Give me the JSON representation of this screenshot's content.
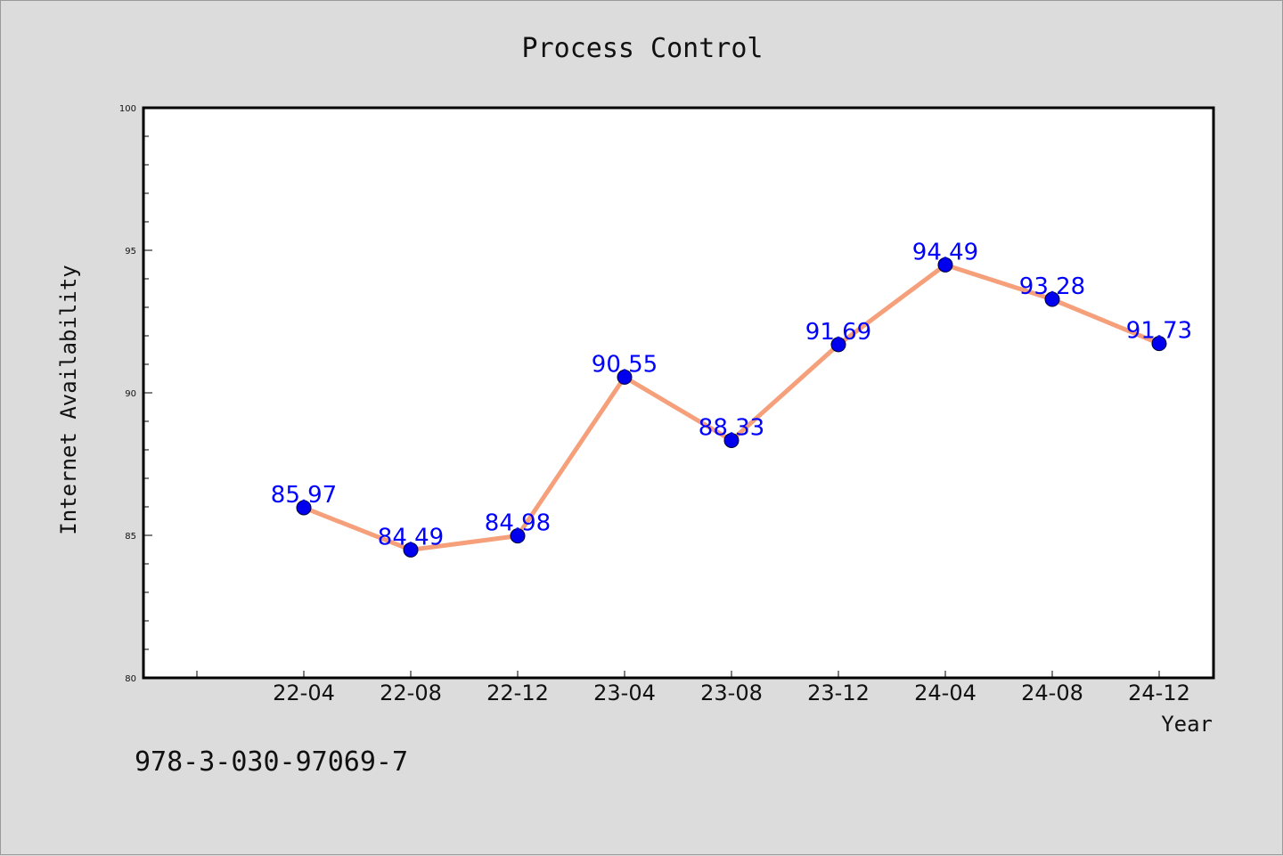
{
  "chart_data": {
    "type": "line",
    "title": "Process Control",
    "xlabel": "Year",
    "ylabel": "Internet Availability",
    "categories": [
      "22-04",
      "22-08",
      "22-12",
      "23-04",
      "23-08",
      "23-12",
      "24-04",
      "24-08",
      "24-12"
    ],
    "series": [
      {
        "values": [
          85.97,
          84.49,
          84.98,
          90.55,
          88.33,
          91.69,
          94.49,
          93.28,
          91.73
        ],
        "data_labels": [
          "85.97",
          "84.49",
          "84.98",
          "90.55",
          "88.33",
          "91.69",
          "94.49",
          "93.28",
          "91.73"
        ],
        "line_color": "#f5a07a",
        "marker_color": "#0000ee"
      }
    ],
    "ylim": [
      80,
      100
    ],
    "y_ticks": [
      80,
      85,
      90,
      95,
      100
    ],
    "y_tick_labels": [
      "80",
      "85",
      "90",
      "95",
      "100"
    ],
    "grid": false,
    "legend": "none"
  },
  "footer": {
    "text": "978-3-030-97069-7"
  },
  "colors": {
    "background": "#dcdcdc",
    "plot_background": "#ffffff",
    "label": "#0000ff"
  }
}
